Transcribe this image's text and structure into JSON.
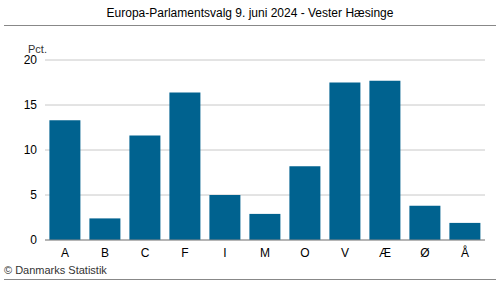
{
  "chart_data": {
    "type": "bar",
    "title": "Europa-Parlamentsvalg 9. juni 2024 - Vester Hæsinge",
    "ylabel": "Pct.",
    "source": "© Danmarks Statistik",
    "categories": [
      "A",
      "B",
      "C",
      "F",
      "I",
      "M",
      "O",
      "V",
      "Æ",
      "Ø",
      "Å"
    ],
    "values": [
      13.3,
      2.4,
      11.6,
      16.4,
      5.0,
      2.9,
      8.2,
      17.5,
      17.7,
      3.8,
      1.9
    ],
    "color": "#00628f",
    "ylim": [
      0,
      20
    ],
    "yticks": [
      0,
      5,
      10,
      15,
      20
    ],
    "grid": true
  }
}
